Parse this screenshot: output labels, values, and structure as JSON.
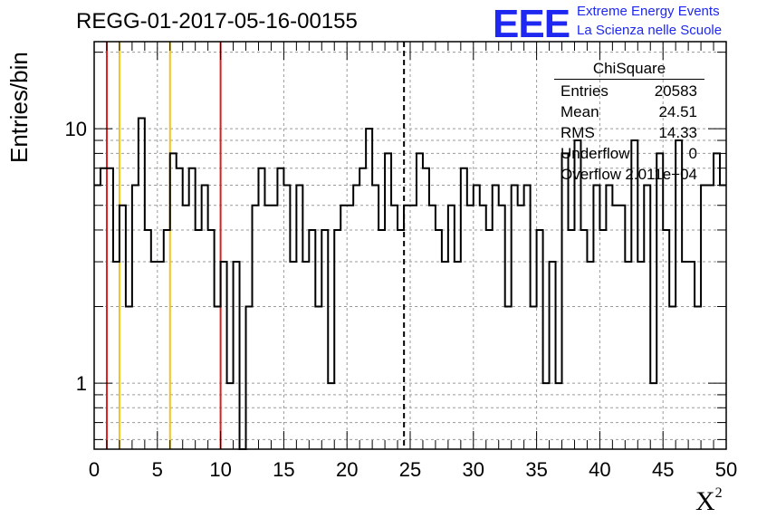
{
  "title": "REGG-01-2017-05-16-00155",
  "logo": {
    "text": "EEE",
    "line1": "Extreme Energy Events",
    "line2": "La Scienza nelle Scuole",
    "color": "#1e28f0"
  },
  "stats": {
    "name": "ChiSquare",
    "rows": [
      {
        "label": "Entries",
        "value": "20583"
      },
      {
        "label": "Mean",
        "value": "24.51"
      },
      {
        "label": "RMS",
        "value": "14.33"
      },
      {
        "label": "Underflow",
        "value": "0"
      },
      {
        "label": "Overflow",
        "value": "2.011e+04"
      }
    ]
  },
  "chart_data": {
    "type": "histogram",
    "title": "REGG-01-2017-05-16-00155",
    "xlabel": "X",
    "xlabel_sup": "2",
    "ylabel": "Entries/bin",
    "xlim": [
      0,
      50
    ],
    "ylim": [
      0.55,
      22
    ],
    "y_scale": "log",
    "grid": true,
    "x_ticks": [
      0,
      5,
      10,
      15,
      20,
      25,
      30,
      35,
      40,
      45,
      50
    ],
    "y_ticks": [
      1,
      10
    ],
    "bin_width": 0.5,
    "bin_contents": [
      6,
      7,
      7,
      3,
      5,
      2,
      6,
      11,
      4,
      3,
      3,
      4,
      8,
      7,
      5,
      7,
      4,
      6,
      4,
      2,
      3,
      1,
      3,
      0,
      2,
      5,
      7,
      5,
      5,
      7,
      6,
      3,
      6,
      3,
      4,
      2,
      4,
      1,
      4,
      5,
      5,
      6,
      7,
      10,
      6,
      4,
      8,
      5,
      4,
      5,
      5,
      8,
      7,
      5,
      4,
      3,
      5,
      3,
      7,
      5,
      6,
      5,
      4,
      6,
      5,
      2,
      6,
      5,
      6,
      2,
      4,
      1,
      3,
      1,
      8,
      4,
      9,
      4,
      3,
      6,
      4,
      6,
      5,
      5,
      3,
      9,
      3,
      6,
      1,
      8,
      4,
      2,
      9,
      3,
      3,
      2,
      6,
      6,
      8,
      6
    ],
    "vertical_lines": [
      {
        "x": 1,
        "color": "#dc1e1e"
      },
      {
        "x": 2,
        "color": "#f0c31e"
      },
      {
        "x": 6,
        "color": "#f0c31e"
      },
      {
        "x": 10,
        "color": "#dc1e1e"
      },
      {
        "x": 24.51,
        "color": "#000000",
        "style": "dashed"
      }
    ]
  }
}
